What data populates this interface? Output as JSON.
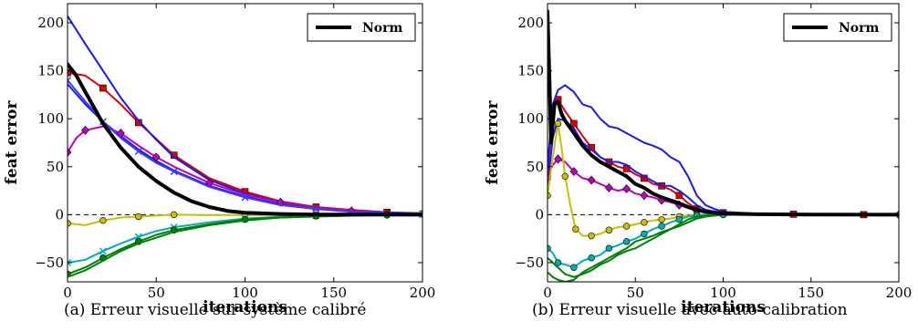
{
  "chart_data": [
    {
      "type": "line",
      "caption": "(a) Erreur visuelle sur système calibré",
      "xlabel": "iterations",
      "ylabel": "feat error",
      "xlim": [
        0,
        200
      ],
      "ylim": [
        -70,
        220
      ],
      "xticks": [
        0,
        50,
        100,
        150,
        200
      ],
      "yticks": [
        -50,
        0,
        50,
        100,
        150,
        200
      ],
      "legend": {
        "position": "top-right",
        "entries": [
          "Norm"
        ]
      },
      "reference_line": {
        "y": 0,
        "style": "dashed"
      },
      "series": [
        {
          "name": "Norm",
          "color": "#000000",
          "width": "thick",
          "marker": "none",
          "x": [
            0,
            5,
            10,
            20,
            30,
            40,
            50,
            60,
            70,
            80,
            90,
            100,
            120,
            140,
            160,
            200
          ],
          "y": [
            157,
            145,
            128,
            95,
            70,
            50,
            35,
            23,
            14,
            8,
            4,
            2,
            0.7,
            0.2,
            0.1,
            0
          ]
        },
        {
          "color": "#e00000",
          "marker": "square",
          "x": [
            0,
            10,
            20,
            30,
            40,
            50,
            60,
            80,
            100,
            120,
            140,
            160,
            180,
            200
          ],
          "y": [
            148,
            145,
            132,
            115,
            96,
            79,
            62,
            38,
            24,
            14,
            8,
            5,
            2.5,
            1.5
          ]
        },
        {
          "color": "#1a1aee",
          "marker": "none",
          "x": [
            0,
            10,
            20,
            30,
            40,
            50,
            60,
            80,
            100,
            120,
            140,
            160,
            200
          ],
          "y": [
            207,
            178,
            150,
            122,
            98,
            78,
            60,
            36,
            22,
            13,
            7,
            4,
            1
          ]
        },
        {
          "color": "#1a1aee",
          "marker": "none",
          "x": [
            0,
            10,
            20,
            30,
            40,
            50,
            60,
            80,
            100,
            120,
            140,
            160,
            200
          ],
          "y": [
            136,
            115,
            97,
            82,
            68,
            56,
            46,
            30,
            19,
            11,
            6,
            3.5,
            1
          ]
        },
        {
          "color": "#c000c0",
          "marker": "diamond",
          "x": [
            0,
            5,
            10,
            20,
            30,
            40,
            50,
            60,
            80,
            100,
            120,
            140,
            160,
            180,
            200
          ],
          "y": [
            65,
            80,
            88,
            92,
            85,
            72,
            60,
            50,
            33,
            21,
            13,
            7,
            4,
            2,
            1
          ]
        },
        {
          "color": "#3b3bff",
          "marker": "x",
          "x": [
            0,
            10,
            20,
            30,
            40,
            50,
            60,
            80,
            100,
            120,
            140,
            160,
            200
          ],
          "y": [
            140,
            118,
            97,
            80,
            66,
            54,
            45,
            29,
            18,
            10,
            6,
            3,
            1
          ]
        },
        {
          "color": "#c8c000",
          "marker": "circle",
          "x": [
            0,
            10,
            20,
            30,
            40,
            50,
            60,
            80,
            100,
            120,
            140,
            160,
            180,
            200
          ],
          "y": [
            -9,
            -11,
            -6,
            -3,
            -2,
            -1,
            0,
            -0.5,
            -0.3,
            -0.2,
            -0.1,
            0,
            0,
            0
          ]
        },
        {
          "color": "#00b0b0",
          "marker": "x",
          "x": [
            0,
            10,
            20,
            30,
            40,
            50,
            60,
            80,
            100,
            120,
            140,
            160,
            200
          ],
          "y": [
            -50,
            -47,
            -38,
            -30,
            -23,
            -17,
            -13,
            -8,
            -4,
            -2,
            -1,
            -0.5,
            0
          ]
        },
        {
          "color": "#008000",
          "marker": "circle",
          "x": [
            0,
            10,
            20,
            30,
            40,
            50,
            60,
            80,
            100,
            120,
            140,
            160,
            180,
            200
          ],
          "y": [
            -62,
            -55,
            -45,
            -36,
            -28,
            -21,
            -16,
            -10,
            -5,
            -3,
            -1.5,
            -1,
            -0.5,
            0
          ]
        },
        {
          "color": "#008000",
          "marker": "none",
          "x": [
            0,
            10,
            20,
            30,
            40,
            50,
            60,
            80,
            100,
            120,
            140,
            160,
            200
          ],
          "y": [
            -65,
            -58,
            -48,
            -38,
            -30,
            -24,
            -18,
            -11,
            -6,
            -3,
            -2,
            -1,
            0
          ]
        }
      ]
    },
    {
      "type": "line",
      "caption": "(b) Erreur visuelle avec auto-calibration",
      "xlabel": "iterations",
      "ylabel": "feat error",
      "xlim": [
        0,
        200
      ],
      "ylim": [
        -70,
        220
      ],
      "xticks": [
        0,
        50,
        100,
        150,
        200
      ],
      "yticks": [
        -50,
        0,
        50,
        100,
        150,
        200
      ],
      "legend": {
        "position": "top-right",
        "entries": [
          "Norm"
        ]
      },
      "reference_line": {
        "y": 0,
        "style": "dashed"
      },
      "series": [
        {
          "name": "Norm",
          "color": "#000000",
          "width": "thick",
          "marker": "none",
          "x": [
            0,
            1,
            2,
            4,
            6,
            8,
            10,
            15,
            20,
            25,
            30,
            35,
            40,
            45,
            50,
            55,
            60,
            65,
            70,
            75,
            80,
            85,
            90,
            100,
            120,
            150,
            200
          ],
          "y": [
            212,
            150,
            75,
            115,
            118,
            105,
            98,
            85,
            72,
            62,
            55,
            50,
            45,
            40,
            32,
            28,
            22,
            18,
            15,
            12,
            8,
            5,
            3,
            1,
            0.5,
            0.2,
            0
          ]
        },
        {
          "color": "#e00000",
          "marker": "square",
          "x": [
            0,
            3,
            6,
            10,
            15,
            20,
            25,
            30,
            35,
            40,
            45,
            50,
            55,
            60,
            65,
            70,
            75,
            80,
            85,
            90,
            100,
            120,
            140,
            160,
            180,
            200
          ],
          "y": [
            40,
            110,
            120,
            108,
            95,
            82,
            70,
            60,
            55,
            50,
            48,
            42,
            38,
            32,
            30,
            26,
            20,
            12,
            6,
            4,
            2,
            1,
            0.5,
            0,
            0,
            0
          ]
        },
        {
          "color": "#1a1aee",
          "marker": "none",
          "x": [
            0,
            3,
            6,
            10,
            15,
            20,
            25,
            30,
            35,
            40,
            45,
            50,
            55,
            60,
            65,
            70,
            75,
            80,
            85,
            90,
            95,
            100,
            110,
            120,
            140,
            200
          ],
          "y": [
            50,
            115,
            130,
            135,
            128,
            115,
            112,
            100,
            92,
            90,
            85,
            80,
            75,
            72,
            68,
            60,
            55,
            40,
            20,
            10,
            6,
            3,
            2,
            1,
            0.5,
            0
          ]
        },
        {
          "color": "#1a1aee",
          "marker": "none",
          "x": [
            0,
            3,
            6,
            10,
            15,
            20,
            25,
            30,
            35,
            40,
            45,
            50,
            55,
            60,
            65,
            70,
            75,
            80,
            85,
            90,
            100,
            120,
            200
          ],
          "y": [
            30,
            80,
            100,
            98,
            90,
            75,
            68,
            60,
            55,
            55,
            52,
            45,
            40,
            35,
            30,
            30,
            25,
            18,
            10,
            5,
            2,
            1,
            0
          ]
        },
        {
          "color": "#c000c0",
          "marker": "diamond",
          "x": [
            0,
            3,
            6,
            10,
            15,
            20,
            25,
            30,
            35,
            40,
            45,
            50,
            55,
            60,
            65,
            70,
            75,
            80,
            85,
            90,
            100,
            120,
            200
          ],
          "y": [
            40,
            52,
            58,
            55,
            45,
            38,
            36,
            32,
            28,
            25,
            27,
            22,
            20,
            18,
            15,
            13,
            10,
            7,
            4,
            2,
            1,
            0.5,
            0
          ]
        },
        {
          "color": "#c8c000",
          "marker": "circle",
          "x": [
            0,
            3,
            6,
            8,
            10,
            13,
            16,
            20,
            25,
            30,
            35,
            40,
            45,
            50,
            55,
            60,
            65,
            70,
            75,
            80,
            85,
            90,
            100,
            200
          ],
          "y": [
            20,
            60,
            95,
            70,
            40,
            10,
            -15,
            -22,
            -22,
            -20,
            -16,
            -13,
            -12,
            -10,
            -8,
            -6,
            -5,
            -4,
            -2,
            -1,
            0,
            0,
            0,
            0
          ]
        },
        {
          "color": "#00b0b0",
          "marker": "circle",
          "x": [
            0,
            3,
            6,
            10,
            15,
            20,
            25,
            30,
            35,
            40,
            45,
            50,
            55,
            60,
            65,
            70,
            75,
            80,
            85,
            90,
            100,
            200
          ],
          "y": [
            -35,
            -40,
            -50,
            -52,
            -55,
            -48,
            -45,
            -42,
            -35,
            -32,
            -28,
            -25,
            -20,
            -15,
            -12,
            -8,
            -5,
            -2,
            -1,
            0,
            0,
            0
          ]
        },
        {
          "color": "#008000",
          "marker": "none",
          "x": [
            0,
            3,
            6,
            10,
            15,
            20,
            25,
            30,
            35,
            40,
            45,
            50,
            55,
            60,
            65,
            70,
            75,
            80,
            85,
            90,
            100,
            200
          ],
          "y": [
            -45,
            -50,
            -55,
            -62,
            -65,
            -62,
            -58,
            -52,
            -48,
            -42,
            -38,
            -35,
            -30,
            -25,
            -20,
            -15,
            -10,
            -5,
            -2,
            -1,
            0,
            0
          ]
        },
        {
          "color": "#008000",
          "marker": "none",
          "x": [
            0,
            3,
            6,
            10,
            15,
            20,
            25,
            30,
            35,
            40,
            45,
            50,
            55,
            60,
            65,
            70,
            75,
            80,
            85,
            90,
            100,
            200
          ],
          "y": [
            -60,
            -65,
            -68,
            -70,
            -68,
            -60,
            -55,
            -50,
            -45,
            -40,
            -35,
            -28,
            -25,
            -22,
            -18,
            -15,
            -12,
            -8,
            -4,
            -2,
            0,
            0
          ]
        }
      ]
    }
  ]
}
